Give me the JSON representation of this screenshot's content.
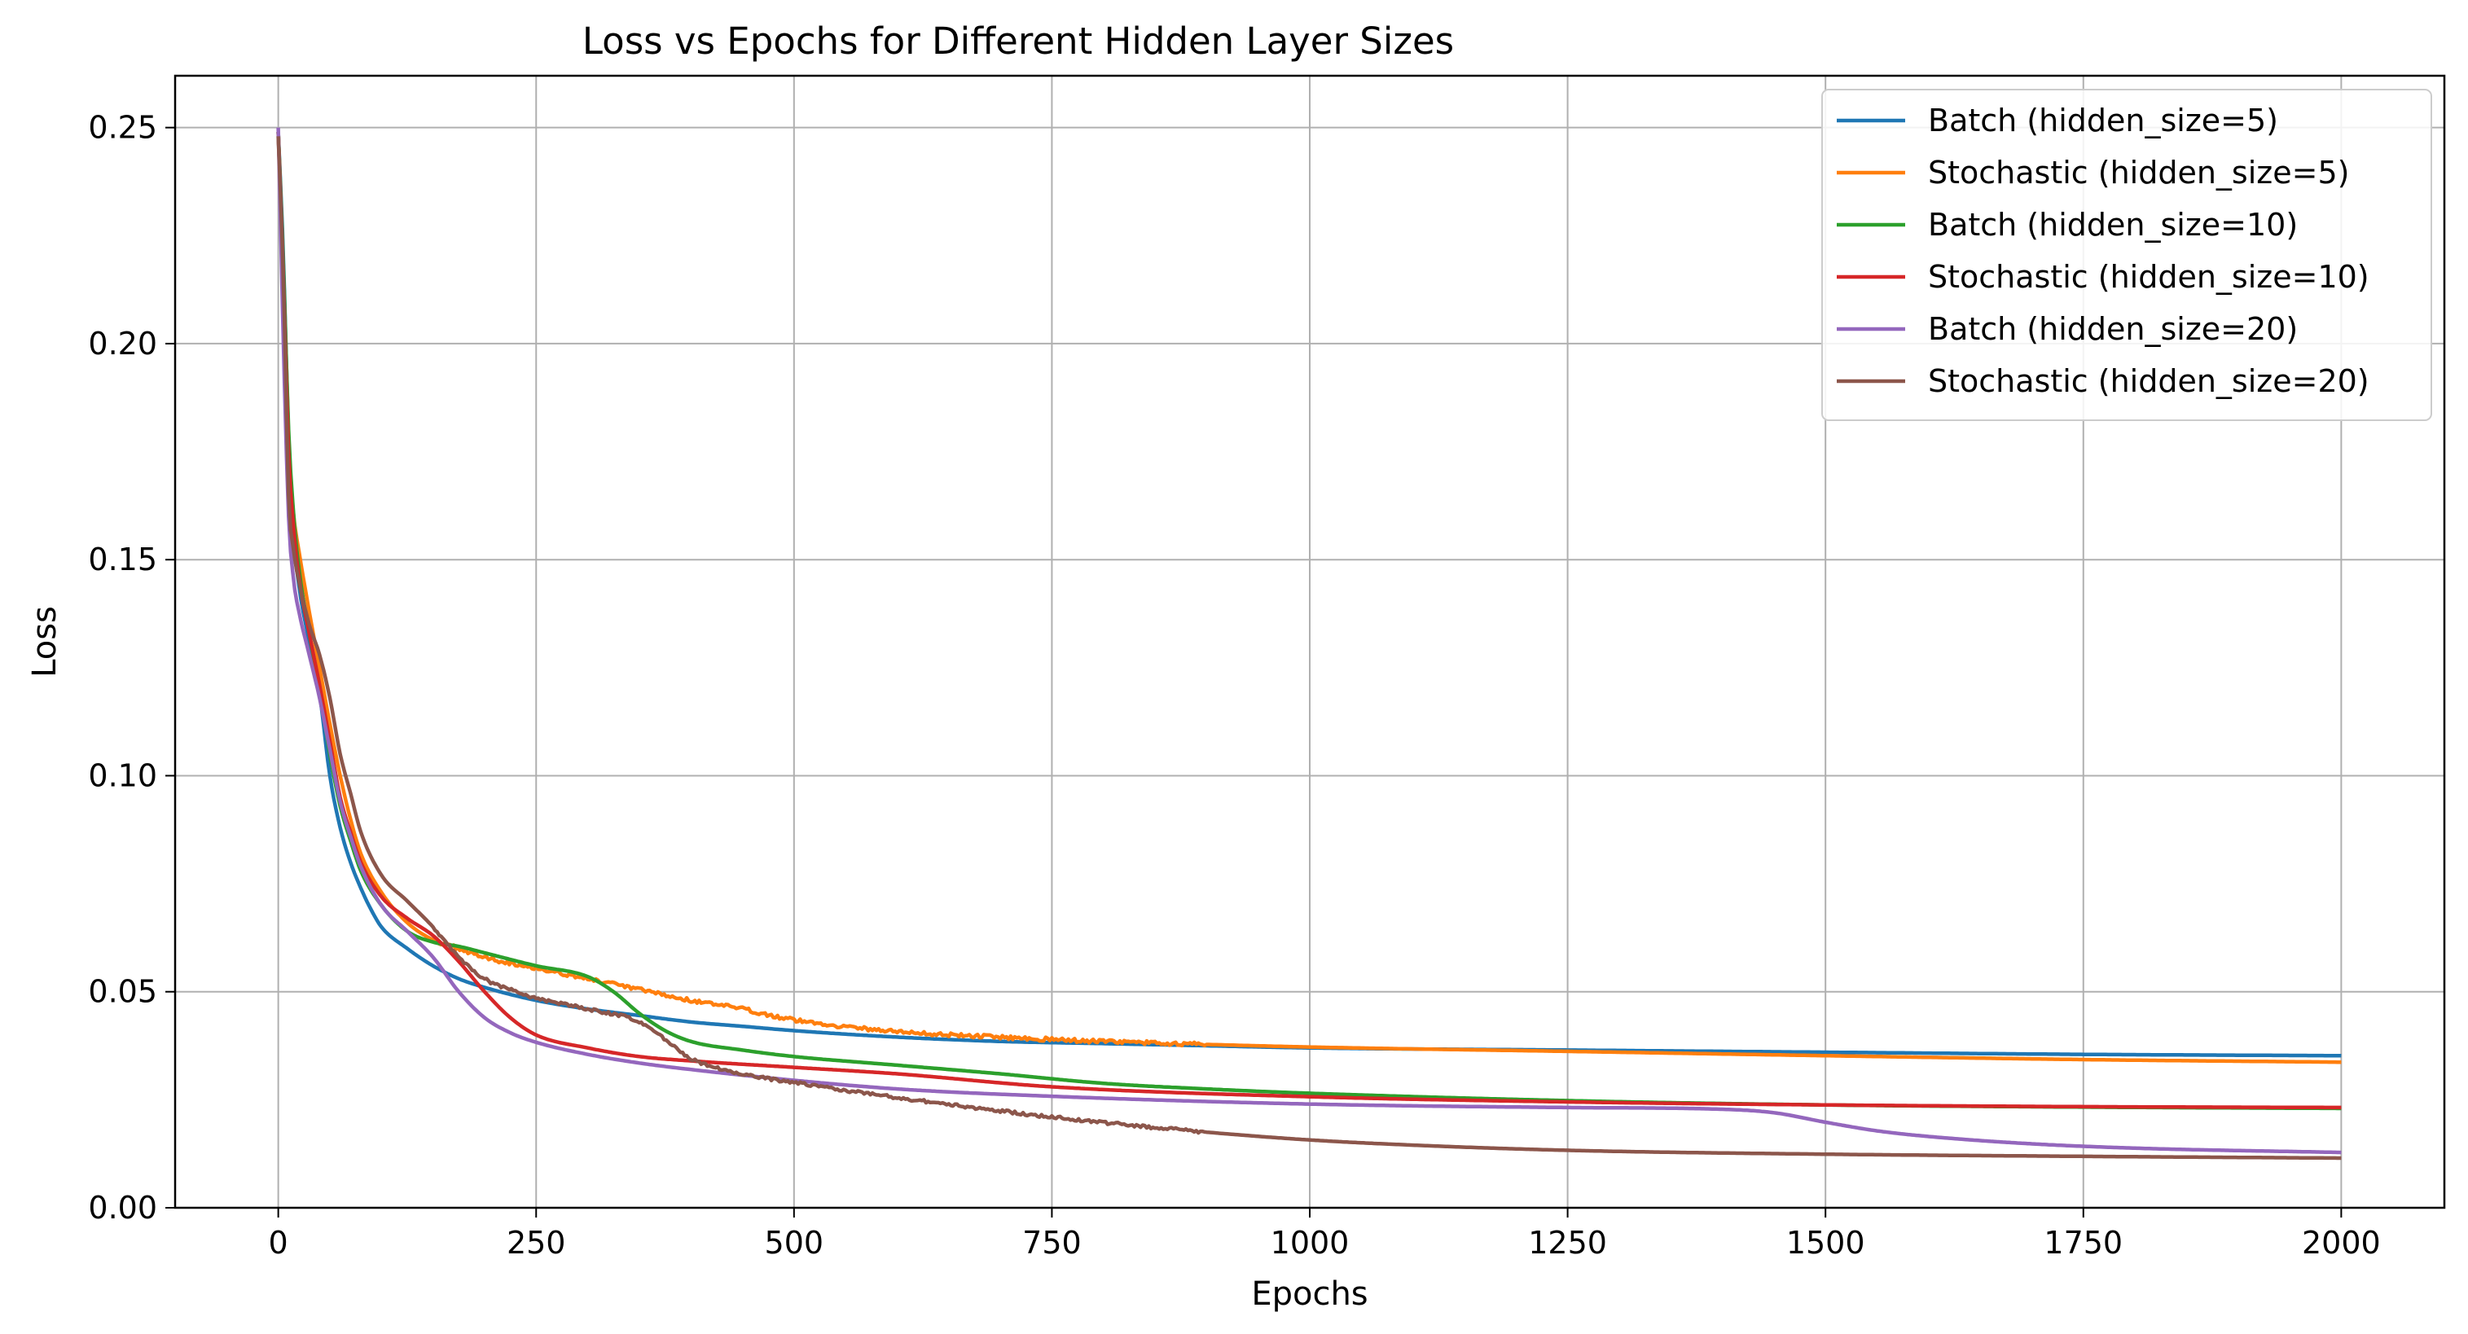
{
  "chart_data": {
    "type": "line",
    "title": "Loss vs Epochs for Different Hidden Layer Sizes",
    "xlabel": "Epochs",
    "ylabel": "Loss",
    "xlim": [
      -100,
      2100
    ],
    "ylim": [
      0.0,
      0.262
    ],
    "xticks": [
      0,
      250,
      500,
      750,
      1000,
      1250,
      1500,
      1750,
      2000
    ],
    "xtick_labels": [
      "0",
      "250",
      "500",
      "750",
      "1000",
      "1250",
      "1500",
      "1750",
      "2000"
    ],
    "yticks": [
      0.0,
      0.05,
      0.1,
      0.15,
      0.2,
      0.25
    ],
    "ytick_labels": [
      "0.00",
      "0.05",
      "0.10",
      "0.15",
      "0.20",
      "0.25"
    ],
    "grid": true,
    "legend_position": "top-right",
    "series": [
      {
        "name": "Batch (hidden_size=5)",
        "color": "#1f77b4",
        "noise": 0,
        "x": [
          0,
          5,
          10,
          15,
          20,
          30,
          40,
          50,
          60,
          70,
          80,
          90,
          100,
          125,
          150,
          175,
          200,
          250,
          300,
          350,
          400,
          450,
          500,
          600,
          700,
          800,
          900,
          1000,
          1250,
          1500,
          1750,
          2000
        ],
        "y": [
          0.249,
          0.22,
          0.178,
          0.155,
          0.144,
          0.131,
          0.119,
          0.1,
          0.088,
          0.08,
          0.074,
          0.069,
          0.065,
          0.06,
          0.056,
          0.053,
          0.051,
          0.048,
          0.046,
          0.0445,
          0.043,
          0.042,
          0.041,
          0.0395,
          0.0385,
          0.038,
          0.0375,
          0.037,
          0.0365,
          0.036,
          0.0355,
          0.0352
        ]
      },
      {
        "name": "Stochastic (hidden_size=5)",
        "color": "#ff7f0e",
        "noise": 0.00045,
        "x": [
          0,
          5,
          10,
          15,
          20,
          30,
          40,
          50,
          60,
          70,
          80,
          100,
          125,
          150,
          175,
          200,
          250,
          300,
          350,
          400,
          450,
          500,
          600,
          700,
          800,
          900,
          1000,
          1250,
          1500,
          1750,
          2000
        ],
        "y": [
          0.249,
          0.215,
          0.175,
          0.16,
          0.152,
          0.138,
          0.125,
          0.112,
          0.1,
          0.09,
          0.082,
          0.073,
          0.066,
          0.062,
          0.06,
          0.058,
          0.0555,
          0.053,
          0.0505,
          0.048,
          0.046,
          0.0435,
          0.0408,
          0.0395,
          0.0385,
          0.0378,
          0.0372,
          0.0362,
          0.0352,
          0.0343,
          0.0337
        ]
      },
      {
        "name": "Batch (hidden_size=10)",
        "color": "#2ca02c",
        "noise": 0,
        "x": [
          0,
          5,
          10,
          15,
          20,
          30,
          40,
          50,
          60,
          70,
          80,
          100,
          125,
          150,
          175,
          200,
          250,
          300,
          325,
          350,
          375,
          400,
          450,
          500,
          600,
          700,
          800,
          900,
          1000,
          1250,
          1500,
          1750,
          2000
        ],
        "y": [
          0.249,
          0.218,
          0.18,
          0.16,
          0.148,
          0.133,
          0.12,
          0.105,
          0.093,
          0.085,
          0.078,
          0.07,
          0.064,
          0.0615,
          0.0605,
          0.059,
          0.056,
          0.0535,
          0.05,
          0.045,
          0.041,
          0.0385,
          0.0365,
          0.035,
          0.033,
          0.031,
          0.0288,
          0.0275,
          0.0265,
          0.0248,
          0.0238,
          0.0233,
          0.023
        ]
      },
      {
        "name": "Stochastic (hidden_size=10)",
        "color": "#d62728",
        "noise": 0,
        "x": [
          0,
          5,
          10,
          15,
          20,
          30,
          40,
          50,
          60,
          70,
          80,
          100,
          125,
          150,
          175,
          200,
          225,
          250,
          300,
          350,
          400,
          500,
          600,
          750,
          1000,
          1250,
          1500,
          1750,
          2000
        ],
        "y": [
          0.249,
          0.215,
          0.175,
          0.157,
          0.146,
          0.133,
          0.121,
          0.108,
          0.095,
          0.087,
          0.08,
          0.072,
          0.067,
          0.063,
          0.057,
          0.05,
          0.044,
          0.04,
          0.037,
          0.035,
          0.034,
          0.0325,
          0.031,
          0.028,
          0.0257,
          0.0245,
          0.0238,
          0.0234,
          0.0232
        ]
      },
      {
        "name": "Batch (hidden_size=20)",
        "color": "#9467bd",
        "noise": 0,
        "x": [
          0,
          5,
          10,
          15,
          20,
          30,
          40,
          50,
          60,
          70,
          80,
          100,
          125,
          150,
          175,
          200,
          225,
          250,
          300,
          350,
          400,
          500,
          600,
          750,
          1000,
          1250,
          1400,
          1450,
          1500,
          1550,
          1600,
          1700,
          1800,
          2000
        ],
        "y": [
          0.25,
          0.2,
          0.16,
          0.145,
          0.138,
          0.128,
          0.118,
          0.106,
          0.094,
          0.086,
          0.079,
          0.07,
          0.064,
          0.058,
          0.05,
          0.044,
          0.0405,
          0.0383,
          0.0355,
          0.0335,
          0.032,
          0.0295,
          0.0275,
          0.0258,
          0.024,
          0.0232,
          0.0228,
          0.022,
          0.0198,
          0.0178,
          0.0165,
          0.0148,
          0.0138,
          0.0128
        ]
      },
      {
        "name": "Stochastic (hidden_size=20)",
        "color": "#8c564b",
        "noise": 0.00035,
        "x": [
          0,
          5,
          10,
          15,
          20,
          30,
          40,
          50,
          60,
          70,
          80,
          100,
          125,
          150,
          175,
          200,
          225,
          250,
          300,
          350,
          375,
          400,
          450,
          500,
          600,
          750,
          900,
          1000,
          1100,
          1250,
          1500,
          1750,
          2000
        ],
        "y": [
          0.248,
          0.215,
          0.165,
          0.152,
          0.145,
          0.135,
          0.128,
          0.118,
          0.105,
          0.096,
          0.087,
          0.077,
          0.071,
          0.065,
          0.058,
          0.053,
          0.0505,
          0.0485,
          0.046,
          0.043,
          0.039,
          0.0345,
          0.031,
          0.029,
          0.0255,
          0.021,
          0.0175,
          0.0157,
          0.0145,
          0.0133,
          0.0124,
          0.0119,
          0.0115
        ]
      }
    ]
  }
}
